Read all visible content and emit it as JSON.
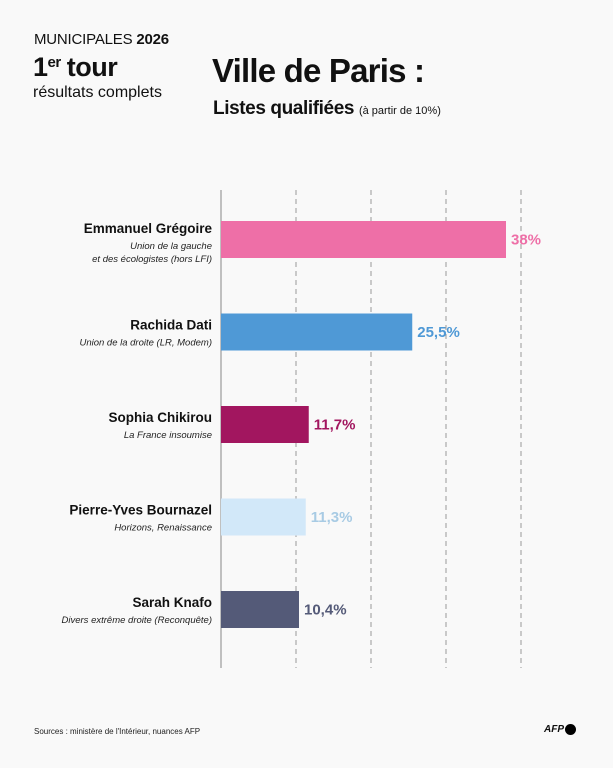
{
  "header": {
    "kicker": "MUNICIPALES",
    "year": "2026",
    "round_num": "1",
    "round_sup": "er",
    "round_word": "tour",
    "status": "résultats complets",
    "title": "Ville de Paris :",
    "subtitle": "Listes qualifiées",
    "subtitle_note": "(à partir de 10%)"
  },
  "chart_data": {
    "type": "bar",
    "orientation": "horizontal",
    "xlim": [
      0,
      40
    ],
    "grid": true,
    "gridlines": [
      10,
      20,
      30,
      40
    ],
    "categories": [
      "Emmanuel Grégoire",
      "Rachida Dati",
      "Sophia Chikirou",
      "Pierre-Yves Bournazel",
      "Sarah Knafo"
    ],
    "parties": [
      [
        "Union de la gauche",
        "et des écologistes (hors LFI)"
      ],
      [
        "Union de la droite (LR, Modem)"
      ],
      [
        "La France insoumise"
      ],
      [
        "Horizons, Renaissance"
      ],
      [
        "Divers extrême droite (Reconquête)"
      ]
    ],
    "values": [
      38,
      25.5,
      11.7,
      11.3,
      10.4
    ],
    "labels": [
      "38%",
      "25,5%",
      "11,7%",
      "11,3%",
      "10,4%"
    ],
    "colors": [
      "#ee6fa7",
      "#4f99d6",
      "#a2165f",
      "#d2e8f9",
      "#545a78"
    ],
    "label_colors": [
      "#ee6fa7",
      "#4f99d6",
      "#a2165f",
      "#a8cbe4",
      "#545a78"
    ]
  },
  "footer": {
    "source": "Sources : ministère de l'Intérieur, nuances AFP",
    "logo": "AFP"
  }
}
